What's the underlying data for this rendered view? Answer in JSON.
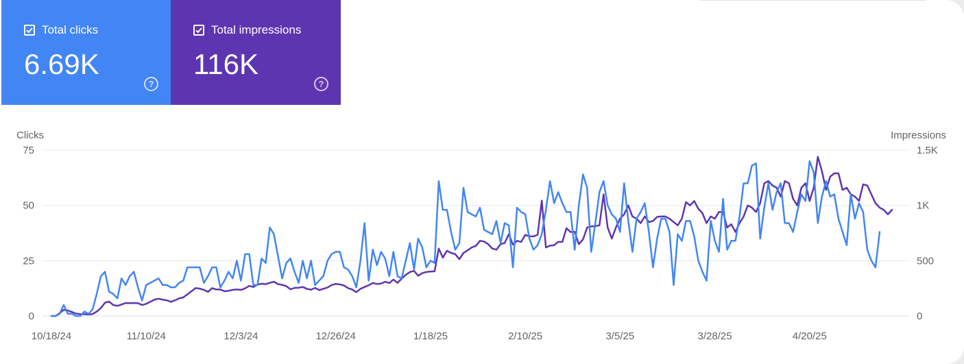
{
  "cards": {
    "clicks": {
      "label": "Total clicks",
      "value": "6.69K",
      "color": "#4285f4"
    },
    "impressions": {
      "label": "Total impressions",
      "value": "116K",
      "color": "#5e35b1"
    }
  },
  "icons": {
    "checkbox": "checkbox-checked-icon",
    "help": "help-circle-icon"
  },
  "chart_data": {
    "type": "line",
    "left_axis": {
      "label": "Clicks",
      "ticks": [
        "0",
        "25",
        "50",
        "75"
      ],
      "ylim": [
        0,
        75
      ]
    },
    "right_axis": {
      "label": "Impressions",
      "ticks": [
        "0",
        "500",
        "1K",
        "1.5K"
      ],
      "ylim": [
        0,
        1500
      ]
    },
    "x_ticks": [
      {
        "label": "10/18/24",
        "day": 0
      },
      {
        "label": "11/10/24",
        "day": 23
      },
      {
        "label": "12/3/24",
        "day": 46
      },
      {
        "label": "12/26/24",
        "day": 69
      },
      {
        "label": "1/18/25",
        "day": 92
      },
      {
        "label": "2/10/25",
        "day": 115
      },
      {
        "label": "3/5/25",
        "day": 138
      },
      {
        "label": "3/28/25",
        "day": 161
      },
      {
        "label": "4/20/25",
        "day": 184
      }
    ],
    "x_range_days": [
      0,
      206
    ],
    "grid": true,
    "series": [
      {
        "name": "Total clicks",
        "axis": "left",
        "color": "#4285f4",
        "values": [
          0,
          0,
          1,
          5,
          1,
          1,
          0,
          0,
          2,
          1,
          3,
          10,
          18,
          20,
          11,
          10,
          8,
          17,
          14,
          18,
          20,
          13,
          7,
          14,
          15,
          16,
          17,
          14,
          14,
          13,
          13,
          15,
          16,
          22,
          22,
          22,
          22,
          15,
          18,
          22,
          22,
          13,
          16,
          20,
          17,
          25,
          16,
          28,
          28,
          14,
          14,
          26,
          24,
          40,
          37,
          27,
          17,
          24,
          26,
          20,
          15,
          25,
          17,
          25,
          14,
          16,
          18,
          25,
          28,
          29,
          29,
          22,
          21,
          18,
          13,
          25,
          42,
          16,
          30,
          23,
          29,
          26,
          18,
          29,
          18,
          17,
          25,
          33,
          21,
          35,
          31,
          22,
          25,
          24,
          61,
          48,
          48,
          38,
          30,
          33,
          58,
          47,
          46,
          45,
          49,
          39,
          38,
          37,
          43,
          33,
          42,
          41,
          22,
          49,
          47,
          46,
          35,
          30,
          32,
          37,
          48,
          61,
          51,
          56,
          51,
          47,
          47,
          30,
          50,
          64,
          58,
          29,
          42,
          56,
          61,
          50,
          46,
          44,
          38,
          60,
          43,
          29,
          44,
          47,
          51,
          38,
          22,
          35,
          44,
          44,
          38,
          14,
          37,
          34,
          43,
          43,
          36,
          25,
          20,
          16,
          43,
          34,
          29,
          53,
          30,
          34,
          34,
          45,
          60,
          60,
          68,
          69,
          35,
          49,
          60,
          48,
          56,
          60,
          42,
          42,
          38,
          47,
          55,
          52,
          70,
          65,
          42,
          54,
          61,
          54,
          55,
          44,
          38,
          32,
          55,
          44,
          51,
          47,
          30,
          25,
          22,
          38
        ]
      },
      {
        "name": "Total impressions",
        "axis": "right",
        "color": "#5e35b1",
        "values": [
          0,
          0,
          26,
          56,
          50,
          36,
          22,
          18,
          16,
          14,
          18,
          40,
          72,
          120,
          130,
          100,
          92,
          104,
          118,
          116,
          118,
          116,
          100,
          110,
          128,
          148,
          156,
          148,
          142,
          128,
          142,
          160,
          168,
          196,
          224,
          252,
          248,
          236,
          218,
          252,
          240,
          240,
          224,
          228,
          236,
          240,
          236,
          250,
          272,
          262,
          284,
          292,
          288,
          300,
          310,
          288,
          282,
          270,
          242,
          254,
          256,
          262,
          246,
          238,
          254,
          234,
          246,
          258,
          280,
          290,
          286,
          276,
          252,
          240,
          216,
          246,
          262,
          278,
          298,
          290,
          294,
          310,
          298,
          330,
          300,
          338,
          372,
          398,
          408,
          364,
          388,
          398,
          402,
          404,
          610,
          528,
          590,
          570,
          560,
          514,
          570,
          594,
          620,
          634,
          680,
          674,
          650,
          610,
          600,
          650,
          660,
          740,
          646,
          680,
          670,
          734,
          720,
          720,
          734,
          1044,
          620,
          636,
          640,
          670,
          670,
          794,
          760,
          762,
          650,
          692,
          800,
          810,
          812,
          820,
          1100,
          800,
          700,
          800,
          880,
          920,
          1000,
          900,
          880,
          840,
          900,
          850,
          860,
          896,
          900,
          900,
          880,
          850,
          820,
          880,
          1030,
          1000,
          1040,
          970,
          930,
          840,
          900,
          880,
          940,
          940,
          800,
          830,
          760,
          840,
          900,
          1000,
          980,
          940,
          1020,
          1200,
          1220,
          1180,
          1160,
          1080,
          1220,
          1200,
          1060,
          1000,
          1160,
          1200,
          1040,
          1160,
          1440,
          1310,
          1140,
          1260,
          1290,
          1290,
          1140,
          1160,
          1100,
          1080,
          1040,
          1190,
          1180,
          1100,
          1020,
          980,
          960,
          920,
          960
        ]
      }
    ]
  }
}
